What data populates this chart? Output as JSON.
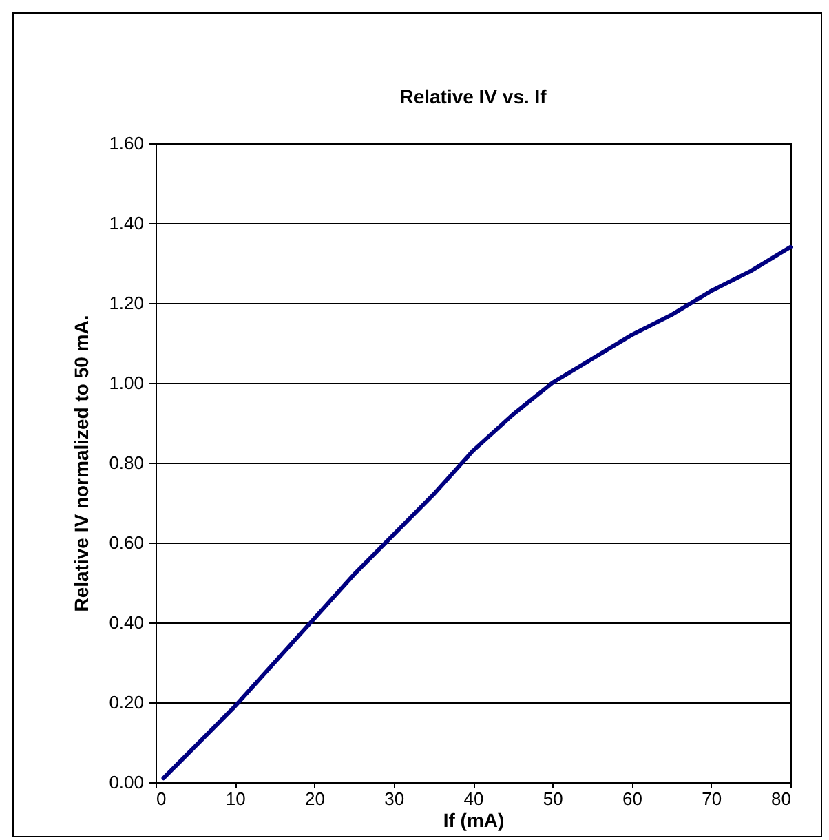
{
  "chart_data": {
    "type": "line",
    "title": "Relative IV vs. If",
    "xlabel": "If (mA)",
    "ylabel": "Relative IV normalized to 50 mA.",
    "x": [
      1,
      5,
      10,
      15,
      20,
      25,
      30,
      35,
      40,
      45,
      50,
      55,
      60,
      65,
      70,
      75,
      80
    ],
    "series": [
      {
        "color": "#000080",
        "values": [
          0.01,
          0.09,
          0.19,
          0.3,
          0.41,
          0.52,
          0.62,
          0.72,
          0.83,
          0.92,
          1.0,
          1.06,
          1.12,
          1.17,
          1.23,
          1.28,
          1.34
        ]
      }
    ],
    "xlim": [
      0,
      80
    ],
    "xticks": [
      0,
      10,
      20,
      30,
      40,
      50,
      60,
      70,
      80
    ],
    "ylim": [
      0,
      1.6
    ],
    "yticks": [
      {
        "value": 0,
        "label": "0.00"
      },
      {
        "value": 0.2,
        "label": "0.20"
      },
      {
        "value": 0.4,
        "label": "0.40"
      },
      {
        "value": 0.6,
        "label": "0.60"
      },
      {
        "value": 0.8,
        "label": "0.80"
      },
      {
        "value": 1.0,
        "label": "1.00"
      },
      {
        "value": 1.2,
        "label": "1.20"
      },
      {
        "value": 1.4,
        "label": "1.40"
      },
      {
        "value": 1.6,
        "label": "1.60"
      }
    ],
    "grid": "y",
    "legend": false,
    "marker": "none",
    "line_style": "solid"
  }
}
